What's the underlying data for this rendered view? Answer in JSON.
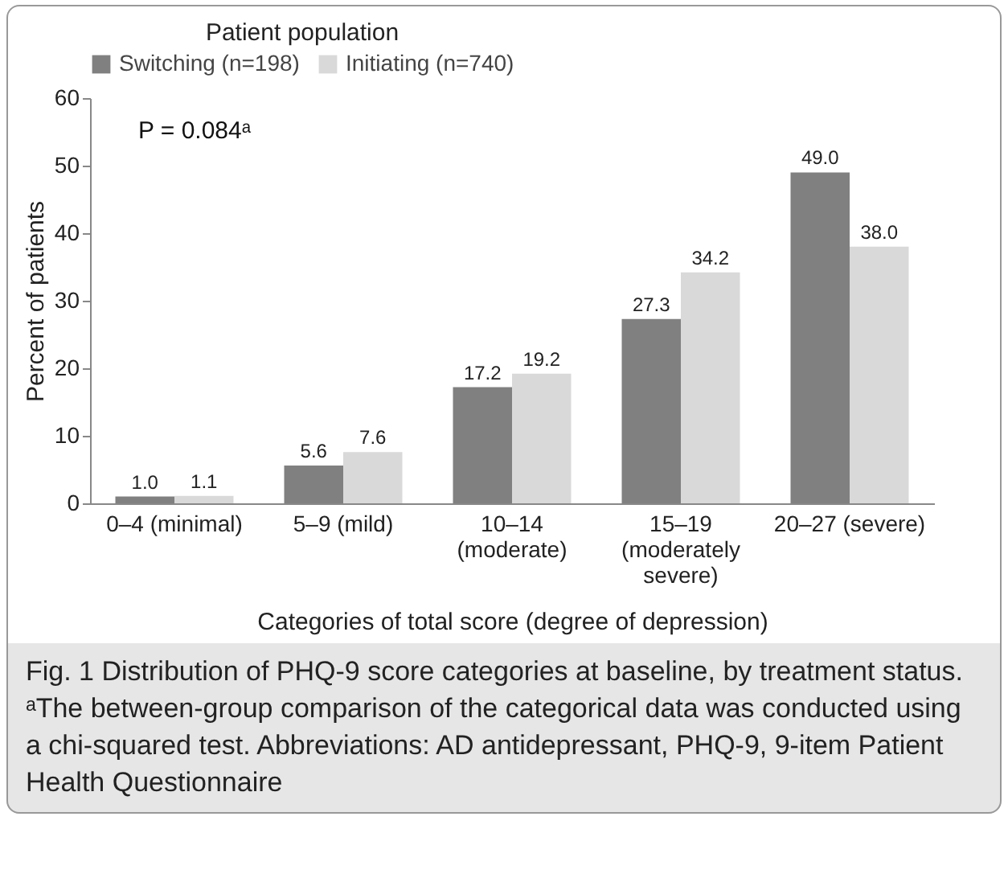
{
  "chart_data": {
    "type": "bar",
    "legend_title": "Patient population",
    "xlabel": "Categories of total score (degree of depression)",
    "ylabel": "Percent of patients",
    "categories": [
      "0–4 (minimal)",
      "5–9 (mild)",
      "10–14 (moderate)",
      "15–19 (moderately severe)",
      "20–27 (severe)"
    ],
    "series": [
      {
        "name": "Switching (n=198)",
        "color": "#808080",
        "values": [
          1.0,
          5.6,
          17.2,
          27.3,
          49.0
        ],
        "value_labels": [
          "1.0",
          "5.6",
          "17.2",
          "27.3",
          "49.0"
        ]
      },
      {
        "name": "Initiating (n=740)",
        "color": "#d9d9d9",
        "values": [
          1.1,
          7.6,
          19.2,
          34.2,
          38.0
        ],
        "value_labels": [
          "1.1",
          "7.6",
          "19.2",
          "34.2",
          "38.0"
        ]
      }
    ],
    "ylim": [
      0,
      60
    ],
    "yticks": [
      0,
      10,
      20,
      30,
      40,
      50,
      60
    ],
    "grid": false,
    "legend": "top",
    "annotations": [
      "P = 0.084ᵃ",
      "Fig. 1 Distribution of PHQ-9 score categories at baseline, by treatment status. ᵃThe between-group comparison of the categorical data was conducted using a chi-squared test. Abbreviations: AD antidepressant, PHQ-9, 9-item Patient Health Questionnaire"
    ]
  }
}
